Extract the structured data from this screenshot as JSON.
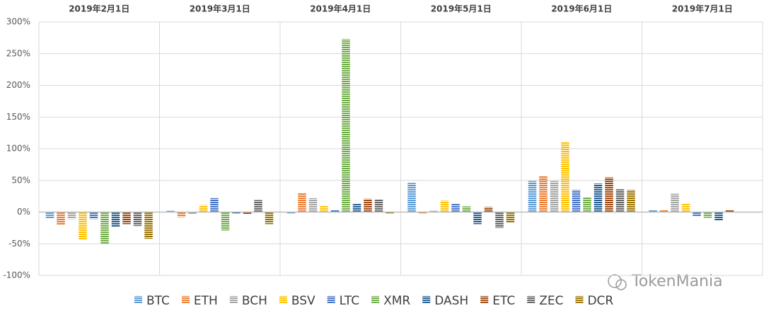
{
  "chart_data": {
    "type": "bar",
    "categories": [
      "2019年2月1日",
      "2019年3月1日",
      "2019年4月1日",
      "2019年5月1日",
      "2019年6月1日",
      "2019年7月1日"
    ],
    "series": [
      {
        "name": "BTC",
        "color": "#5b9bd5",
        "values": [
          -10,
          2,
          -2,
          46,
          49,
          3
        ]
      },
      {
        "name": "ETH",
        "color": "#ed7d31",
        "values": [
          -20,
          -8,
          30,
          -2,
          57,
          3
        ]
      },
      {
        "name": "BCH",
        "color": "#a5a5a5",
        "values": [
          -11,
          -3,
          22,
          2,
          49,
          29
        ]
      },
      {
        "name": "BSV",
        "color": "#ffc000",
        "values": [
          -44,
          11,
          10,
          18,
          111,
          13
        ]
      },
      {
        "name": "LTC",
        "color": "#4472c4",
        "values": [
          -11,
          22,
          3,
          13,
          35,
          -7
        ]
      },
      {
        "name": "XMR",
        "color": "#70ad47",
        "values": [
          -50,
          -29,
          273,
          9,
          23,
          -9
        ]
      },
      {
        "name": "DASH",
        "color": "#255e91",
        "values": [
          -24,
          -2,
          13,
          -19,
          45,
          -14
        ]
      },
      {
        "name": "ETC",
        "color": "#9e480e",
        "values": [
          -19,
          -3,
          21,
          8,
          55,
          3
        ]
      },
      {
        "name": "ZEC",
        "color": "#636363",
        "values": [
          -22,
          19,
          20,
          -25,
          36,
          0
        ]
      },
      {
        "name": "DCR",
        "color": "#997300",
        "values": [
          -42,
          -19,
          -2,
          -17,
          35,
          0
        ]
      }
    ],
    "ylim": [
      -100,
      300
    ],
    "yticks": [
      {
        "value": -100,
        "label": "-100%"
      },
      {
        "value": -50,
        "label": "-50%"
      },
      {
        "value": 0,
        "label": "0%"
      },
      {
        "value": 50,
        "label": "50%"
      },
      {
        "value": 100,
        "label": "100%"
      },
      {
        "value": 150,
        "label": "150%"
      },
      {
        "value": 200,
        "label": "200%"
      },
      {
        "value": 250,
        "label": "250%"
      },
      {
        "value": 300,
        "label": "300%"
      }
    ],
    "grid": true,
    "legend": "bottom",
    "watermark": "TokenMania"
  }
}
